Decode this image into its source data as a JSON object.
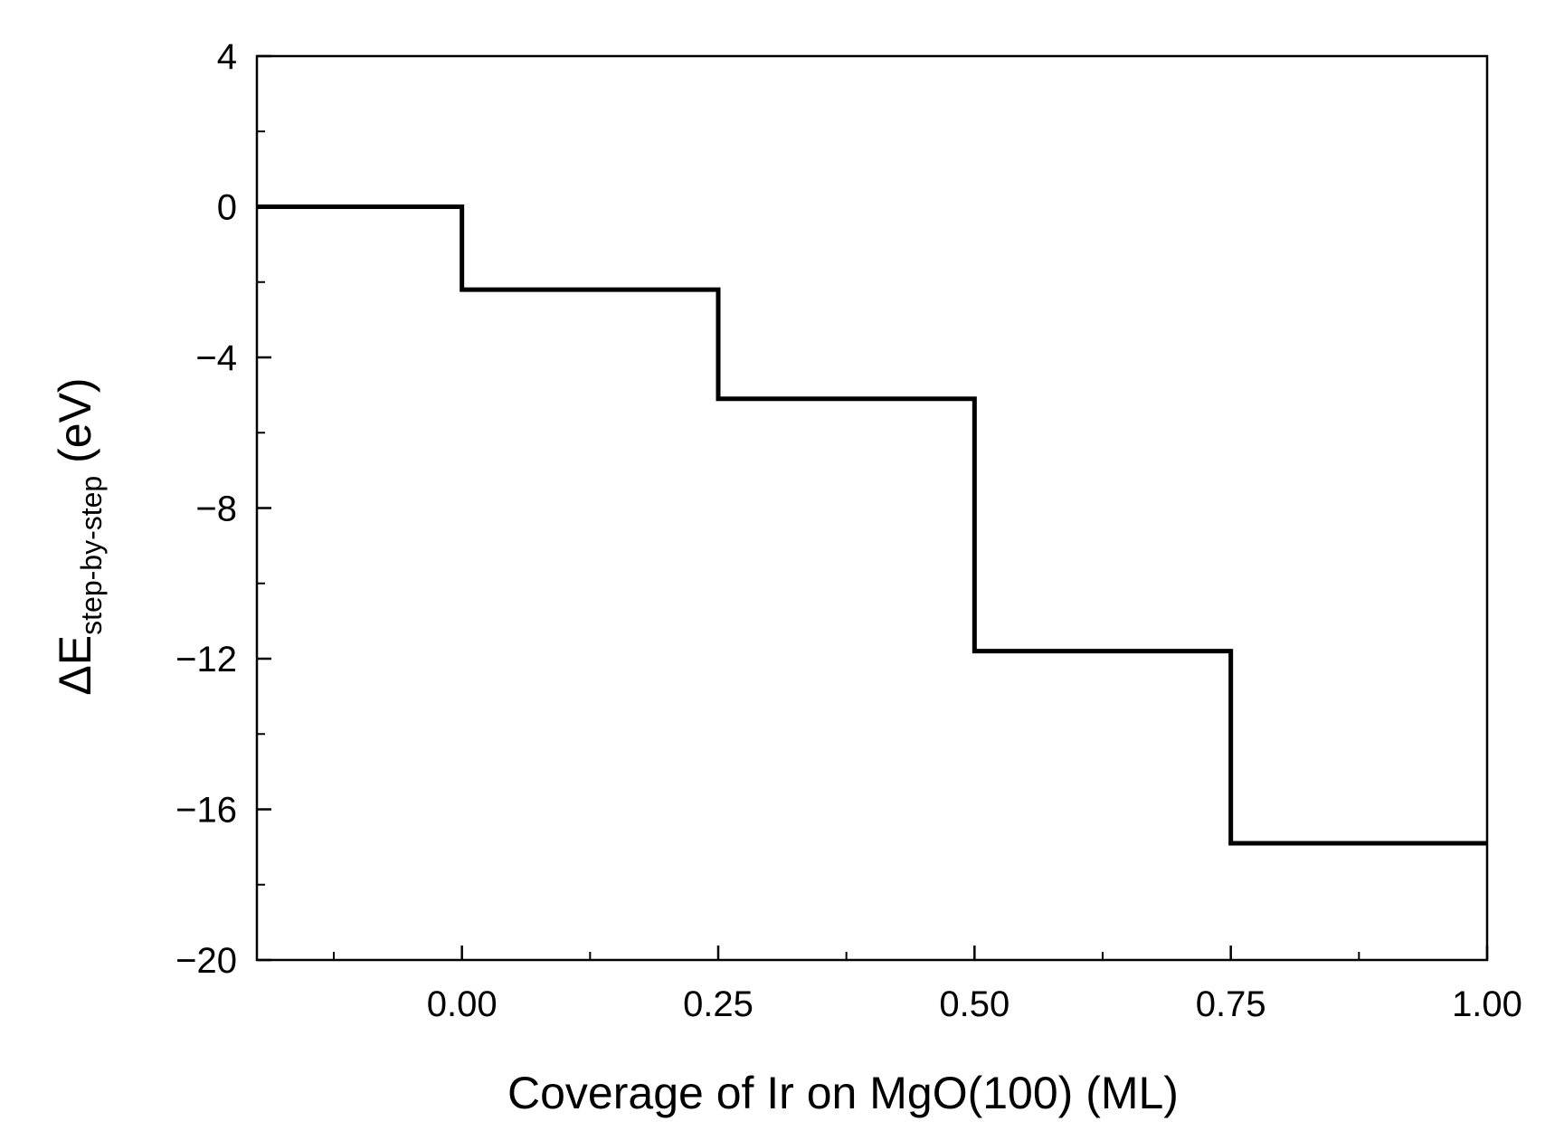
{
  "chart_data": {
    "type": "line",
    "step": true,
    "xlabel": "Coverage of Ir on MgO(100) (ML)",
    "ylabel": {
      "prefix": "ΔE",
      "subscript": "step-by-step",
      "suffix": " (eV)"
    },
    "xlim": [
      -0.2,
      1.0
    ],
    "ylim": [
      -20,
      4
    ],
    "xticks": [
      0.0,
      0.25,
      0.5,
      0.75,
      1.0
    ],
    "xtick_labels": [
      "0.00",
      "0.25",
      "0.50",
      "0.75",
      "1.00"
    ],
    "x_minor_ticks": [
      -0.125,
      0.125,
      0.375,
      0.625,
      0.875
    ],
    "yticks": [
      4,
      0,
      -4,
      -8,
      -12,
      -16,
      -20
    ],
    "ytick_labels": [
      "4",
      "0",
      "−4",
      "−8",
      "−12",
      "−16",
      "−20"
    ],
    "y_minor_ticks": [
      2,
      -2,
      -6,
      -10,
      -14,
      -18
    ],
    "grid": false,
    "line_color": "#000000",
    "series": [
      {
        "x": [
          -0.2,
          0.0,
          0.0,
          0.25,
          0.25,
          0.5,
          0.5,
          0.75,
          0.75,
          1.0
        ],
        "y": [
          0,
          0,
          -2.2,
          -2.2,
          -5.1,
          -5.1,
          -11.8,
          -11.8,
          -16.9,
          -16.9
        ]
      }
    ]
  }
}
